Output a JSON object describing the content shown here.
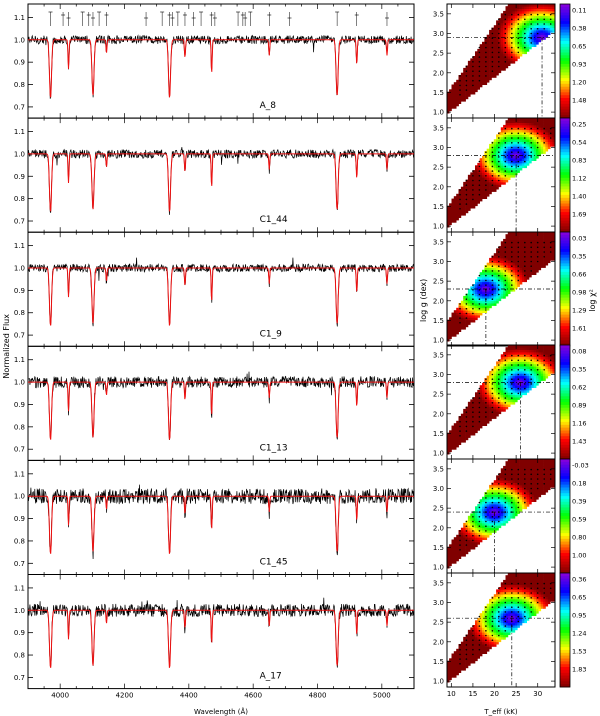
{
  "chart_data": {
    "type": "multi-panel spectra + chi-square maps",
    "left": {
      "type": "line",
      "xlabel": "Wavelength (Å)",
      "ylabel": "Normalized Flux",
      "xlim": [
        3900,
        5100
      ],
      "xticks": [
        4000,
        4200,
        4400,
        4600,
        4800,
        5000
      ],
      "ylim": [
        0.65,
        1.16
      ],
      "yticks": [
        0.7,
        0.8,
        0.9,
        1.0,
        1.1
      ],
      "series": [
        {
          "name": "observed",
          "color": "#000000"
        },
        {
          "name": "model",
          "color": "#ee1111"
        }
      ],
      "line_ids": [
        3970,
        4009,
        4026,
        4070,
        4089,
        4102,
        4121,
        4144,
        4267,
        4317,
        4340,
        4349,
        4366,
        4388,
        4415,
        4438,
        4471,
        4481,
        4553,
        4568,
        4575,
        4591,
        4650,
        4713,
        4861,
        4922,
        5016
      ],
      "absorption_lines": [
        {
          "w": 3970,
          "d": 0.26
        },
        {
          "w": 4026,
          "d": 0.13
        },
        {
          "w": 4102,
          "d": 0.25
        },
        {
          "w": 4144,
          "d": 0.06
        },
        {
          "w": 4340,
          "d": 0.26
        },
        {
          "w": 4388,
          "d": 0.08
        },
        {
          "w": 4471,
          "d": 0.15
        },
        {
          "w": 4650,
          "d": 0.07
        },
        {
          "w": 4861,
          "d": 0.25
        },
        {
          "w": 4922,
          "d": 0.11
        },
        {
          "w": 5016,
          "d": 0.07
        }
      ],
      "panels": [
        {
          "label": "A_8",
          "noise": 0.012
        },
        {
          "label": "C1_44",
          "noise": 0.012
        },
        {
          "label": "C1_9",
          "noise": 0.011
        },
        {
          "label": "C1_13",
          "noise": 0.016
        },
        {
          "label": "C1_45",
          "noise": 0.022
        },
        {
          "label": "A_17",
          "noise": 0.018
        }
      ]
    },
    "right": {
      "type": "heatmap",
      "xlabel": "T_eff (kK)",
      "ylabel": "log g (dex)",
      "colorbar_label": "log χ²",
      "xlim": [
        9,
        34
      ],
      "xticks": [
        10,
        15,
        20,
        25,
        30
      ],
      "ylim": [
        0.85,
        3.75
      ],
      "yticks": [
        1.0,
        1.5,
        2.0,
        2.5,
        3.0,
        3.5
      ],
      "panels": [
        {
          "best_teff": 31,
          "best_logg": 2.9,
          "cb_ticks": [
            "0.11",
            "0.38",
            "0.65",
            "0.93",
            "1.20",
            "1.48"
          ]
        },
        {
          "best_teff": 25,
          "best_logg": 2.8,
          "cb_ticks": [
            "0.25",
            "0.54",
            "0.83",
            "1.12",
            "1.40",
            "1.69"
          ]
        },
        {
          "best_teff": 18,
          "best_logg": 2.3,
          "cb_ticks": [
            "0.03",
            "0.35",
            "0.66",
            "0.98",
            "1.29",
            "1.61"
          ]
        },
        {
          "best_teff": 26,
          "best_logg": 2.8,
          "cb_ticks": [
            "0.08",
            "0.35",
            "0.62",
            "0.89",
            "1.16",
            "1.43"
          ]
        },
        {
          "best_teff": 20,
          "best_logg": 2.4,
          "cb_ticks": [
            "-0.03",
            "0.18",
            "0.39",
            "0.59",
            "0.80",
            "1.00"
          ]
        },
        {
          "best_teff": 24,
          "best_logg": 2.6,
          "cb_ticks": [
            "0.36",
            "0.65",
            "0.95",
            "1.24",
            "1.53",
            "1.83"
          ]
        }
      ]
    }
  }
}
